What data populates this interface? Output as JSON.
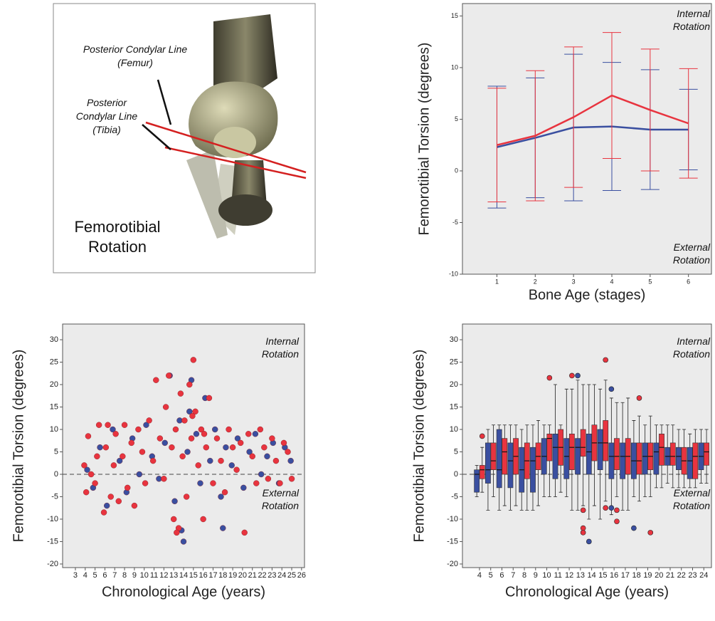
{
  "diagram": {
    "labels": [
      "Posterior Condylar Line (Femur)",
      "Posterior Condylar Line (Tibia)"
    ],
    "title": "Femorotibial Rotation"
  },
  "chart_data": [
    {
      "type": "line",
      "y_label": "Femorotibial Torsion  (degrees)",
      "x_label": "Bone Age (stages)",
      "annotations": [
        "Internal Rotation",
        "External Rotation"
      ],
      "x": [
        1,
        2,
        3,
        4,
        5,
        6
      ],
      "xlim": [
        0.1,
        6.6
      ],
      "xticks": [
        1,
        2,
        3,
        4,
        5,
        6
      ],
      "ylim": [
        -10,
        16.2
      ],
      "yticks": [
        -10,
        -5,
        0,
        5,
        10,
        15
      ],
      "series": [
        {
          "color": "#3a4fa0",
          "values": [
            2.3,
            3.2,
            4.2,
            4.3,
            4.0,
            4.0
          ],
          "errors": [
            5.9,
            5.8,
            7.1,
            6.2,
            5.8,
            3.9
          ]
        },
        {
          "color": "#e8343f",
          "values": [
            2.5,
            3.4,
            5.2,
            7.3,
            5.9,
            4.6
          ],
          "errors": [
            5.5,
            6.3,
            6.8,
            6.1,
            5.9,
            5.3
          ]
        }
      ]
    },
    {
      "type": "scatter",
      "y_label": "Femorotibial Torsion  (degrees)",
      "x_label": "Chronological Age (years)",
      "annotations": [
        "Internal Rotation",
        "External Rotation"
      ],
      "reference_line": 0,
      "xlim": [
        1.7,
        26.3
      ],
      "xticks": [
        3,
        4,
        5,
        6,
        7,
        8,
        9,
        10,
        11,
        12,
        13,
        14,
        15,
        16,
        17,
        18,
        19,
        20,
        21,
        22,
        23,
        24,
        25,
        26
      ],
      "ylim": [
        -20.8,
        33.5
      ],
      "yticks": [
        -20,
        -15,
        -10,
        -5,
        0,
        5,
        10,
        15,
        20,
        25,
        30
      ],
      "series": [
        {
          "color": "#3a4fa0",
          "x": [
            4.2,
            4.8,
            5.5,
            6.2,
            6.8,
            7.5,
            8.2,
            8.8,
            9.5,
            10.2,
            10.8,
            11.5,
            12.1,
            12.6,
            13.1,
            13.6,
            14.0,
            14.4,
            14.8,
            15.3,
            15.7,
            16.2,
            16.7,
            17.2,
            17.8,
            18.3,
            18.9,
            19.5,
            20.1,
            20.7,
            21.3,
            21.9,
            22.5,
            23.1,
            23.7,
            24.3,
            24.9,
            13.8,
            14.6,
            18.0
          ],
          "y": [
            1,
            -3,
            6,
            -7,
            10,
            3,
            -4,
            8,
            0,
            11,
            4,
            -1,
            7,
            22,
            -6,
            12,
            -15,
            5,
            21,
            9,
            -2,
            17,
            3,
            10,
            -5,
            6,
            2,
            8,
            -3,
            5,
            9,
            0,
            4,
            7,
            -2,
            6,
            3,
            -12.5,
            14,
            -12
          ]
        },
        {
          "color": "#e8343f",
          "x": [
            3.9,
            4.1,
            4.3,
            4.6,
            5.0,
            5.2,
            5.4,
            5.9,
            6.1,
            6.3,
            6.6,
            6.9,
            7.1,
            7.4,
            7.8,
            8.0,
            8.3,
            8.7,
            9.0,
            9.4,
            9.8,
            10.1,
            10.5,
            10.9,
            11.2,
            11.6,
            12.0,
            12.2,
            12.5,
            12.8,
            13.0,
            13.2,
            13.5,
            13.7,
            13.9,
            14.1,
            14.3,
            14.6,
            14.8,
            15.0,
            15.2,
            15.5,
            15.8,
            16.0,
            16.3,
            16.6,
            17.0,
            17.4,
            17.8,
            18.2,
            18.6,
            19.0,
            19.4,
            19.8,
            20.2,
            20.6,
            21.0,
            21.4,
            21.8,
            22.2,
            22.6,
            23.0,
            23.4,
            23.8,
            24.2,
            24.6,
            25.0,
            13.3,
            14.9,
            16.1
          ],
          "y": [
            2,
            -4,
            8.5,
            0,
            -2,
            4,
            11,
            -8.5,
            6,
            11,
            -5,
            2,
            9,
            -6,
            4,
            11,
            -3,
            7,
            -7,
            10,
            5,
            -2,
            12,
            3,
            21,
            8,
            -1,
            15,
            22,
            6,
            -10,
            10,
            -12,
            18,
            4,
            12,
            -5,
            20,
            8,
            25.5,
            14,
            2,
            10,
            -10,
            6,
            17,
            -2,
            8,
            3,
            -4,
            10,
            6,
            1,
            7,
            -13,
            9,
            4,
            -2,
            10,
            6,
            -1,
            8,
            3,
            -2,
            7,
            5,
            -1,
            -13,
            13,
            9
          ]
        }
      ]
    },
    {
      "type": "box",
      "y_label": "Femorotibial Torsion  (degrees)",
      "x_label": "Chronological Age (years)",
      "annotations": [
        "Internal Rotation",
        "External Rotation"
      ],
      "reference_line": 0,
      "categories": [
        4,
        5,
        6,
        7,
        8,
        9,
        10,
        11,
        12,
        13,
        14,
        15,
        16,
        17,
        18,
        19,
        20,
        21,
        22,
        23,
        24
      ],
      "ylim": [
        -20.8,
        33.5
      ],
      "yticks": [
        -20,
        -15,
        -10,
        -5,
        0,
        5,
        10,
        15,
        20,
        25,
        30
      ],
      "series": [
        {
          "color": "#3a4fa0",
          "min": [
            -5,
            -8,
            -8,
            -8,
            -8,
            -8,
            -5,
            -5,
            -5,
            -8,
            -10,
            -10,
            -9,
            -8,
            -5,
            -5,
            -3,
            -2,
            -3,
            -3,
            -2
          ],
          "q1": [
            -4,
            -2,
            -3,
            -3,
            -4,
            -4,
            0,
            -1,
            -1,
            0,
            0,
            1,
            -1,
            -1,
            -1,
            0,
            0,
            2,
            1,
            -1,
            1
          ],
          "median": [
            0,
            1,
            1,
            3,
            1,
            3,
            4,
            6,
            4,
            6,
            5,
            7,
            4,
            4,
            3,
            4,
            5,
            4,
            4,
            3,
            4
          ],
          "q3": [
            1,
            7,
            10,
            7,
            6,
            6,
            8,
            9,
            8,
            8,
            9,
            10,
            7,
            7,
            7,
            7,
            7,
            6,
            6,
            6,
            7
          ],
          "max": [
            2,
            10,
            11,
            11,
            10,
            11,
            11,
            20,
            19,
            21,
            20,
            19,
            17,
            16,
            12,
            11,
            11,
            11,
            10,
            9,
            10
          ],
          "outliers": {
            "x": [
              13,
              14,
              16,
              16,
              18
            ],
            "y": [
              22,
              -15,
              19,
              -7.5,
              -12
            ]
          }
        },
        {
          "color": "#e8343f",
          "min": [
            -4,
            -5,
            -7,
            -7,
            -8,
            -7,
            -5,
            -4,
            -8,
            -7,
            -7,
            -6,
            -5,
            -8,
            -6,
            -5,
            -3,
            -3,
            -3,
            -3,
            -2
          ],
          "q1": [
            -1,
            1,
            0,
            0,
            -1,
            1,
            3,
            2,
            1,
            4,
            3,
            3,
            1,
            0,
            0,
            1,
            2,
            2,
            0,
            -1,
            2
          ],
          "median": [
            1,
            3,
            5,
            4,
            3,
            4,
            8,
            6,
            6,
            6,
            7,
            7,
            4,
            4,
            3,
            4,
            6,
            4,
            3,
            4,
            5
          ],
          "q3": [
            2,
            7,
            8,
            8,
            7,
            7,
            9,
            10,
            9,
            10,
            11,
            12,
            8,
            8,
            7,
            7,
            9,
            7,
            6,
            7,
            7
          ],
          "max": [
            6,
            11,
            11,
            11,
            11,
            12,
            11,
            11,
            19,
            20,
            20,
            21,
            16,
            17,
            13,
            13,
            11,
            11,
            10,
            10,
            10
          ],
          "outliers": {
            "x": [
              4,
              10,
              12,
              13,
              13,
              13,
              15,
              15,
              16,
              16,
              18,
              19
            ],
            "y": [
              8.5,
              21.5,
              22,
              -8,
              -12,
              -13,
              25.5,
              -7.5,
              -8,
              -10.5,
              17,
              -13
            ]
          }
        }
      ]
    }
  ]
}
